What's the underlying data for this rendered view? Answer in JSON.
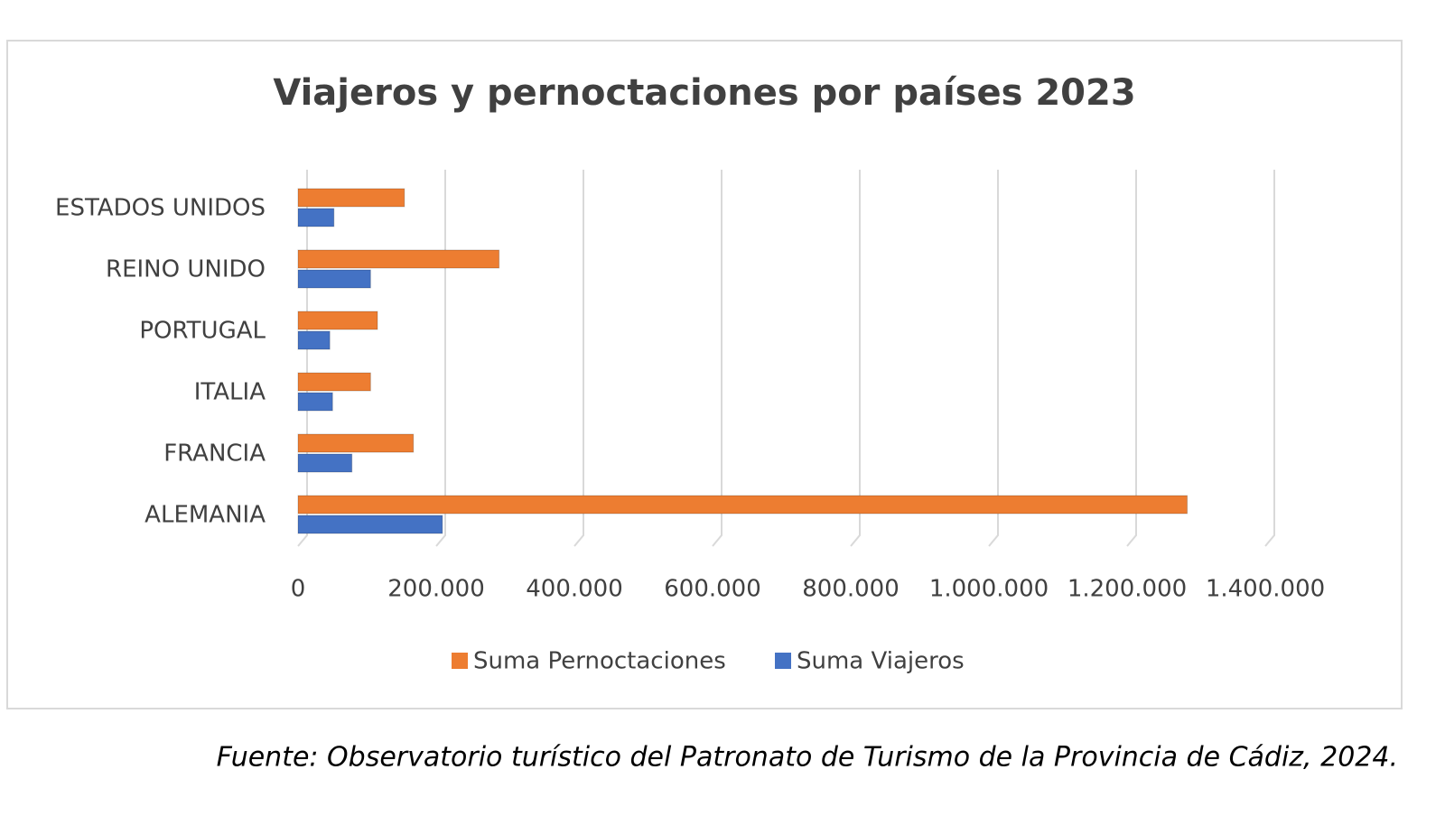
{
  "chart_data": {
    "type": "bar",
    "orientation": "horizontal",
    "title": "Viajeros y pernoctaciones por países 2023",
    "categories": [
      "ALEMANIA",
      "FRANCIA",
      "ITALIA",
      "PORTUGAL",
      "REINO UNIDO",
      "ESTADOS UNIDOS"
    ],
    "series": [
      {
        "name": "Suma Pernoctaciones",
        "color": "#ed7d31",
        "values": [
          1287000,
          167000,
          105000,
          115000,
          291000,
          154000
        ]
      },
      {
        "name": "Suma Viajeros",
        "color": "#4472c4",
        "values": [
          209000,
          78000,
          50000,
          46000,
          105000,
          52000
        ]
      }
    ],
    "xlim": [
      0,
      1400000
    ],
    "xticks": [
      0,
      {
        "value": 200000,
        "label": "200.000"
      },
      {
        "value": 400000,
        "label": "400.000"
      },
      {
        "value": 600000,
        "label": "600.000"
      },
      {
        "value": 800000,
        "label": "800.000"
      },
      {
        "value": 1000000,
        "label": "1.000.000"
      },
      {
        "value": 1200000,
        "label": "1.200.000"
      },
      {
        "value": 1400000,
        "label": "1.400.000"
      }
    ],
    "grid": true,
    "legend": "bottom",
    "source": "Fuente: Observatorio turístico del Patronato de Turismo de la Provincia de Cádiz, 2024."
  }
}
